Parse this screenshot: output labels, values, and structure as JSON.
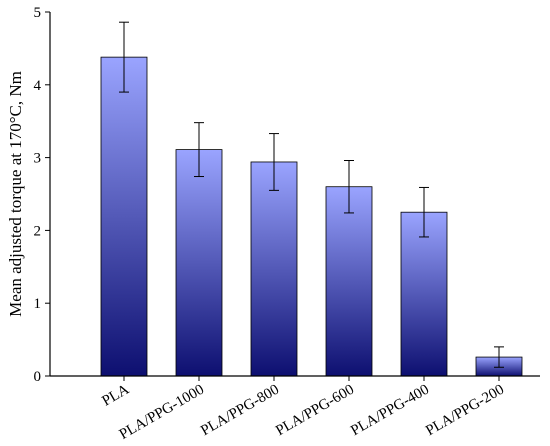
{
  "chart_data": {
    "type": "bar",
    "title": "",
    "xlabel": "",
    "ylabel": "Mean adjusted torque at 170°C, Nm",
    "ylim": [
      0,
      5
    ],
    "yticks": [
      0,
      1,
      2,
      3,
      4,
      5
    ],
    "grid": false,
    "categories": [
      "PLA",
      "PLA/PPG-1000",
      "PLA/PPG-800",
      "PLA/PPG-600",
      "PLA/PPG-400",
      "PLA/PPG-200"
    ],
    "values": [
      4.38,
      3.11,
      2.94,
      2.6,
      2.25,
      0.26
    ],
    "errors": [
      0.48,
      0.37,
      0.39,
      0.36,
      0.34,
      0.14
    ],
    "colors": {
      "bar_top": "#9aa4ff",
      "bar_bottom": "#0d0f70",
      "bar_edge": "#000000"
    }
  }
}
